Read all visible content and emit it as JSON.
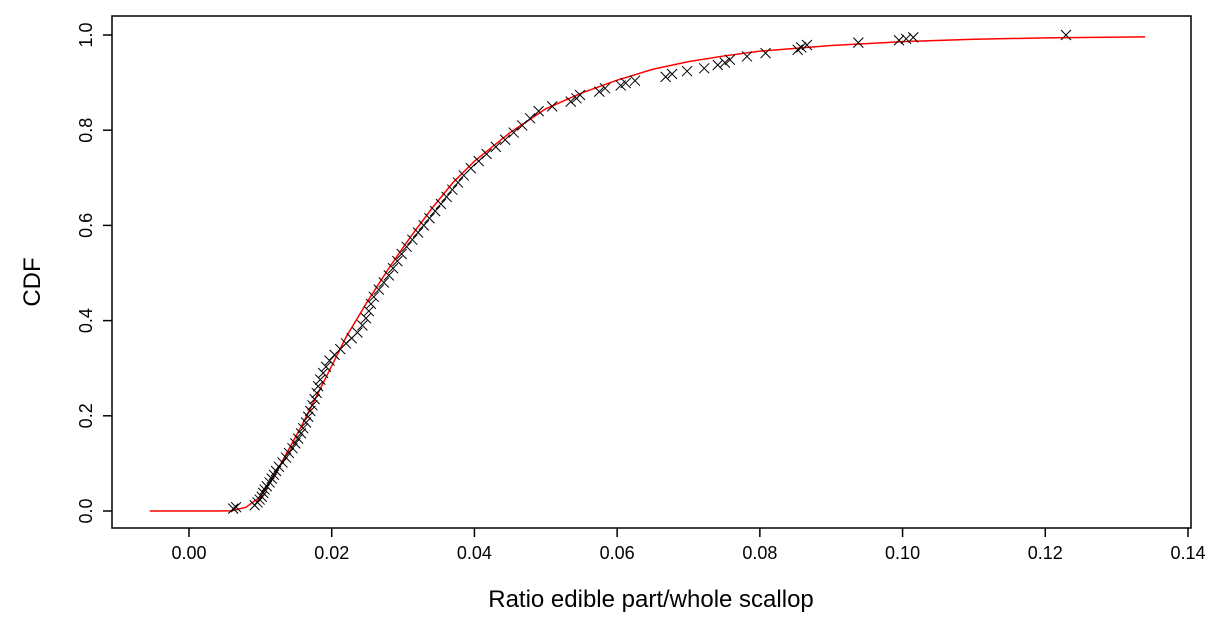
{
  "chart_data": {
    "type": "scatter",
    "title": "",
    "xlabel": "Ratio edible part/whole scallop",
    "ylabel": "CDF",
    "xlim": [
      -0.0055,
      0.134
    ],
    "ylim": [
      0,
      1
    ],
    "xticks": [
      0.0,
      0.02,
      0.04,
      0.06,
      0.08,
      0.1,
      0.12,
      0.14
    ],
    "xtick_labels": [
      "0.00",
      "0.02",
      "0.04",
      "0.06",
      "0.08",
      "0.10",
      "0.12",
      "0.14"
    ],
    "yticks": [
      0.0,
      0.2,
      0.4,
      0.6,
      0.8,
      1.0
    ],
    "ytick_labels": [
      "0.0",
      "0.2",
      "0.4",
      "0.6",
      "0.8",
      "1.0"
    ],
    "grid": false,
    "legend": "none",
    "colors": {
      "points": "#000000",
      "fit": "#ff0000",
      "axes": "#000000"
    },
    "series": [
      {
        "kind": "empirical",
        "marker": "x",
        "points": [
          [
            0.0062,
            0.005
          ],
          [
            0.0066,
            0.008
          ],
          [
            0.0092,
            0.012
          ],
          [
            0.0096,
            0.018
          ],
          [
            0.0099,
            0.024
          ],
          [
            0.0102,
            0.03
          ],
          [
            0.0104,
            0.038
          ],
          [
            0.0106,
            0.045
          ],
          [
            0.0109,
            0.052
          ],
          [
            0.0113,
            0.06
          ],
          [
            0.0116,
            0.068
          ],
          [
            0.0119,
            0.076
          ],
          [
            0.0122,
            0.084
          ],
          [
            0.0126,
            0.093
          ],
          [
            0.0131,
            0.102
          ],
          [
            0.0136,
            0.112
          ],
          [
            0.014,
            0.122
          ],
          [
            0.0145,
            0.132
          ],
          [
            0.0149,
            0.142
          ],
          [
            0.0153,
            0.152
          ],
          [
            0.0157,
            0.163
          ],
          [
            0.016,
            0.174
          ],
          [
            0.0164,
            0.186
          ],
          [
            0.0167,
            0.198
          ],
          [
            0.017,
            0.21
          ],
          [
            0.0173,
            0.222
          ],
          [
            0.0176,
            0.235
          ],
          [
            0.0179,
            0.248
          ],
          [
            0.0181,
            0.262
          ],
          [
            0.0184,
            0.276
          ],
          [
            0.0188,
            0.29
          ],
          [
            0.0192,
            0.303
          ],
          [
            0.0197,
            0.316
          ],
          [
            0.0204,
            0.328
          ],
          [
            0.0212,
            0.34
          ],
          [
            0.022,
            0.352
          ],
          [
            0.0228,
            0.363
          ],
          [
            0.0236,
            0.375
          ],
          [
            0.0243,
            0.39
          ],
          [
            0.0248,
            0.405
          ],
          [
            0.0252,
            0.42
          ],
          [
            0.0255,
            0.435
          ],
          [
            0.0259,
            0.45
          ],
          [
            0.0266,
            0.465
          ],
          [
            0.0273,
            0.48
          ],
          [
            0.028,
            0.495
          ],
          [
            0.0286,
            0.51
          ],
          [
            0.0292,
            0.525
          ],
          [
            0.0298,
            0.54
          ],
          [
            0.0305,
            0.555
          ],
          [
            0.0313,
            0.57
          ],
          [
            0.0321,
            0.585
          ],
          [
            0.0329,
            0.6
          ],
          [
            0.0337,
            0.615
          ],
          [
            0.0345,
            0.63
          ],
          [
            0.0353,
            0.645
          ],
          [
            0.0361,
            0.66
          ],
          [
            0.0369,
            0.675
          ],
          [
            0.0377,
            0.69
          ],
          [
            0.0385,
            0.705
          ],
          [
            0.0395,
            0.72
          ],
          [
            0.0406,
            0.735
          ],
          [
            0.0417,
            0.75
          ],
          [
            0.043,
            0.765
          ],
          [
            0.0443,
            0.78
          ],
          [
            0.0455,
            0.795
          ],
          [
            0.0467,
            0.81
          ],
          [
            0.0478,
            0.825
          ],
          [
            0.049,
            0.84
          ],
          [
            0.0509,
            0.85
          ],
          [
            0.0535,
            0.86
          ],
          [
            0.0543,
            0.867
          ],
          [
            0.0548,
            0.874
          ],
          [
            0.0575,
            0.881
          ],
          [
            0.0583,
            0.888
          ],
          [
            0.0605,
            0.894
          ],
          [
            0.0612,
            0.899
          ],
          [
            0.0625,
            0.904
          ],
          [
            0.0668,
            0.912
          ],
          [
            0.0677,
            0.918
          ],
          [
            0.0698,
            0.924
          ],
          [
            0.0722,
            0.93
          ],
          [
            0.0741,
            0.937
          ],
          [
            0.0751,
            0.942
          ],
          [
            0.0758,
            0.948
          ],
          [
            0.0782,
            0.955
          ],
          [
            0.0808,
            0.962
          ],
          [
            0.0853,
            0.969
          ],
          [
            0.0858,
            0.974
          ],
          [
            0.0866,
            0.979
          ],
          [
            0.0938,
            0.984
          ],
          [
            0.0995,
            0.989
          ],
          [
            0.1005,
            0.992
          ],
          [
            0.1015,
            0.995
          ],
          [
            0.1229,
            1.0
          ]
        ]
      },
      {
        "kind": "fitted",
        "line": "solid",
        "points": [
          [
            -0.0055,
            0.0
          ],
          [
            0.004,
            0.0
          ],
          [
            0.006,
            0.0005
          ],
          [
            0.008,
            0.008
          ],
          [
            0.01,
            0.03
          ],
          [
            0.012,
            0.075
          ],
          [
            0.014,
            0.13
          ],
          [
            0.016,
            0.185
          ],
          [
            0.018,
            0.245
          ],
          [
            0.02,
            0.305
          ],
          [
            0.022,
            0.365
          ],
          [
            0.025,
            0.44
          ],
          [
            0.028,
            0.51
          ],
          [
            0.031,
            0.575
          ],
          [
            0.034,
            0.635
          ],
          [
            0.037,
            0.69
          ],
          [
            0.04,
            0.735
          ],
          [
            0.045,
            0.795
          ],
          [
            0.05,
            0.845
          ],
          [
            0.055,
            0.878
          ],
          [
            0.06,
            0.905
          ],
          [
            0.065,
            0.928
          ],
          [
            0.07,
            0.944
          ],
          [
            0.075,
            0.956
          ],
          [
            0.08,
            0.966
          ],
          [
            0.09,
            0.978
          ],
          [
            0.1,
            0.986
          ],
          [
            0.11,
            0.991
          ],
          [
            0.12,
            0.994
          ],
          [
            0.134,
            0.996
          ]
        ]
      }
    ]
  }
}
